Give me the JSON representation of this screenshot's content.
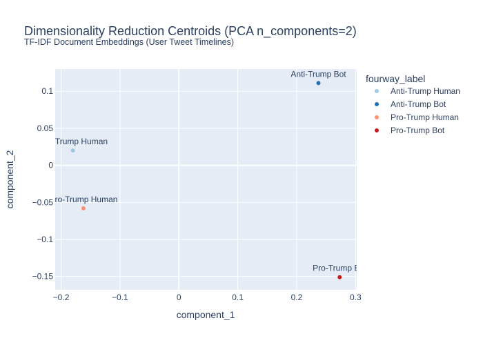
{
  "chart_data": {
    "type": "scatter",
    "title": "Dimensionality Reduction Centroids (PCA n_components=2)",
    "subtitle": "TF-IDF Document Embeddings (User Tweet Timelines)",
    "xlabel": "component_1",
    "ylabel": "component_2",
    "xlim": [
      -0.21,
      0.302
    ],
    "ylim": [
      -0.168,
      0.13
    ],
    "x_ticks": [
      -0.2,
      -0.1,
      0,
      0.1,
      0.2,
      0.3
    ],
    "x_tick_labels": [
      "−0.2",
      "−0.1",
      "0",
      "0.1",
      "0.2",
      "0.3"
    ],
    "y_ticks": [
      -0.15,
      -0.1,
      -0.05,
      0,
      0.05,
      0.1
    ],
    "y_tick_labels": [
      "−0.15",
      "−0.1",
      "−0.05",
      "0",
      "0.05",
      "0.1"
    ],
    "grid": true,
    "legend": {
      "title": "fourway_label",
      "position": "right"
    },
    "series": [
      {
        "name": "Anti-Trump Human",
        "color": "#9ecae1",
        "x": [
          -0.18
        ],
        "y": [
          0.02
        ],
        "labels": [
          "Anti-Trump Human"
        ]
      },
      {
        "name": "Anti-Trump Bot",
        "color": "#2171b5",
        "x": [
          0.237
        ],
        "y": [
          0.111
        ],
        "labels": [
          "Anti-Trump Bot"
        ]
      },
      {
        "name": "Pro-Trump Human",
        "color": "#fc9272",
        "x": [
          -0.162
        ],
        "y": [
          -0.058
        ],
        "labels": [
          "Pro-Trump Human"
        ]
      },
      {
        "name": "Pro-Trump Bot",
        "color": "#cb181d",
        "x": [
          0.273
        ],
        "y": [
          -0.151
        ],
        "labels": [
          "Pro-Trump Bot"
        ]
      }
    ]
  }
}
